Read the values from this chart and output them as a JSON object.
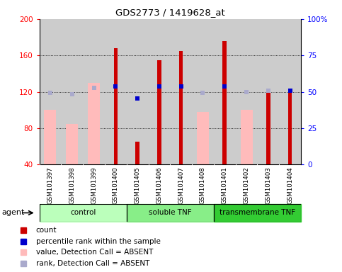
{
  "title": "GDS2773 / 1419628_at",
  "samples": [
    "GSM101397",
    "GSM101398",
    "GSM101399",
    "GSM101400",
    "GSM101405",
    "GSM101406",
    "GSM101407",
    "GSM101408",
    "GSM101401",
    "GSM101402",
    "GSM101403",
    "GSM101404"
  ],
  "groups": [
    {
      "name": "control",
      "color": "#bbffbb",
      "start": 0,
      "end": 4
    },
    {
      "name": "soluble TNF",
      "color": "#88ee88",
      "start": 4,
      "end": 8
    },
    {
      "name": "transmembrane TNF",
      "color": "#33cc33",
      "start": 8,
      "end": 12
    }
  ],
  "red_bars": [
    null,
    null,
    null,
    168,
    65,
    155,
    165,
    null,
    176,
    null,
    121,
    120
  ],
  "pink_bars": [
    100,
    85,
    130,
    null,
    null,
    null,
    null,
    98,
    null,
    100,
    null,
    null
  ],
  "blue_squares": [
    null,
    null,
    null,
    126,
    113,
    126,
    126,
    null,
    126,
    null,
    null,
    121
  ],
  "lavender_squares": [
    119,
    117,
    124,
    null,
    null,
    null,
    null,
    119,
    null,
    120,
    121,
    null
  ],
  "ylim_left": [
    40,
    200
  ],
  "ylim_right": [
    0,
    100
  ],
  "yticks_left": [
    40,
    80,
    120,
    160,
    200
  ],
  "yticks_right": [
    0,
    25,
    50,
    75,
    100
  ],
  "ytick_right_labels": [
    "0",
    "25",
    "50",
    "75",
    "100%"
  ],
  "grid_lines": [
    80,
    120,
    160
  ],
  "red_color": "#cc0000",
  "pink_color": "#ffbbbb",
  "blue_color": "#0000cc",
  "lavender_color": "#aaaacc",
  "legend_items": [
    {
      "color": "#cc0000",
      "marker": "s",
      "label": "count"
    },
    {
      "color": "#0000cc",
      "marker": "s",
      "label": "percentile rank within the sample"
    },
    {
      "color": "#ffbbbb",
      "marker": "s",
      "label": "value, Detection Call = ABSENT"
    },
    {
      "color": "#aaaacc",
      "marker": "s",
      "label": "rank, Detection Call = ABSENT"
    }
  ]
}
